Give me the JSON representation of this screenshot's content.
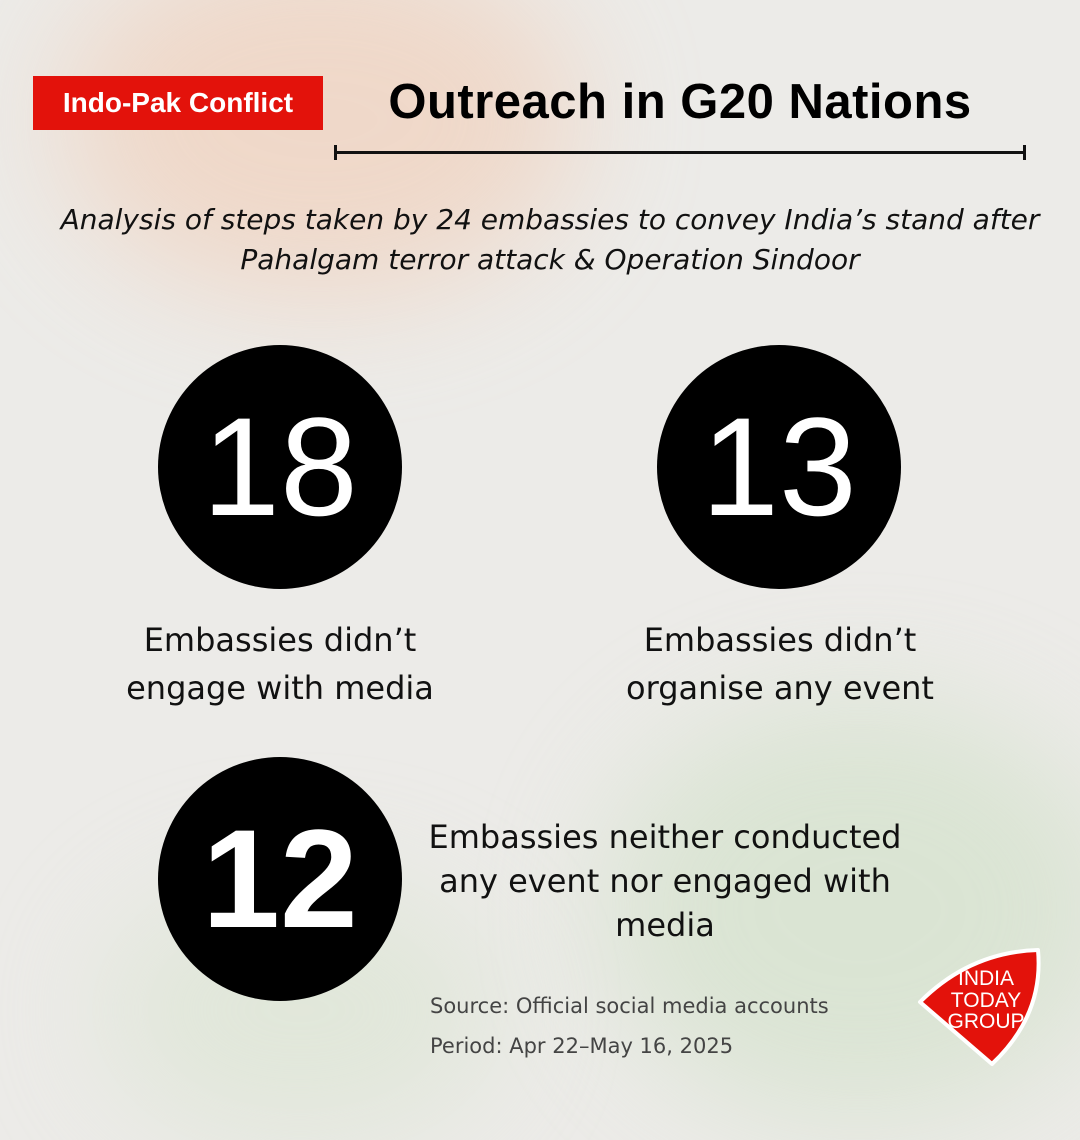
{
  "header": {
    "tag": "Indo-Pak Conflict",
    "title": "Outreach in G20 Nations"
  },
  "subtitle": "Analysis of steps taken by 24 embassies to convey India’s stand after Pahalgam terror attack & Operation Sindoor",
  "stats": [
    {
      "value": "18",
      "label": "Embassies didn’t engage with media"
    },
    {
      "value": "13",
      "label": "Embassies didn’t organise any event"
    },
    {
      "value": "12",
      "label": "Embassies neither conducted any event nor engaged with media"
    }
  ],
  "footer": {
    "source": "Source: Official social media accounts",
    "period": "Period: Apr 22–May 16, 2025"
  },
  "logo": {
    "text": [
      "INDIA",
      "TODAY",
      "GROUP"
    ],
    "color": "#e3120b"
  },
  "colors": {
    "accent": "#e3120b",
    "circle": "#000000",
    "background": "#ecebe8"
  }
}
